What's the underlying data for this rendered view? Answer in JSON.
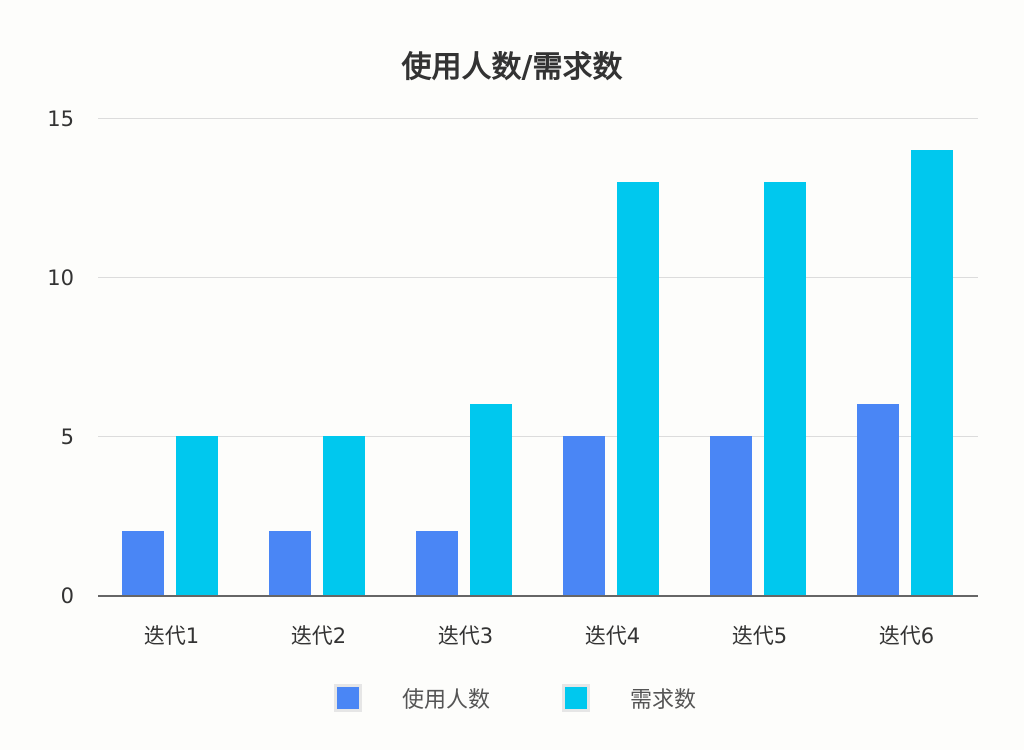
{
  "chart_data": {
    "type": "bar",
    "title": "使用人数/需求数",
    "categories": [
      "迭代1",
      "迭代2",
      "迭代3",
      "迭代4",
      "迭代5",
      "迭代6"
    ],
    "series": [
      {
        "name": "使用人数",
        "color": "#4a86f5",
        "values": [
          2,
          2,
          2,
          5,
          5,
          6
        ]
      },
      {
        "name": "需求数",
        "color": "#00c8ee",
        "values": [
          5,
          5,
          6,
          13,
          13,
          14
        ]
      }
    ],
    "xlabel": "",
    "ylabel": "",
    "ylim": [
      0,
      15
    ],
    "yticks": [
      0,
      5,
      10,
      15
    ],
    "grid": true,
    "legend_position": "bottom"
  },
  "yticks_labels": [
    "0",
    "5",
    "10",
    "15"
  ]
}
